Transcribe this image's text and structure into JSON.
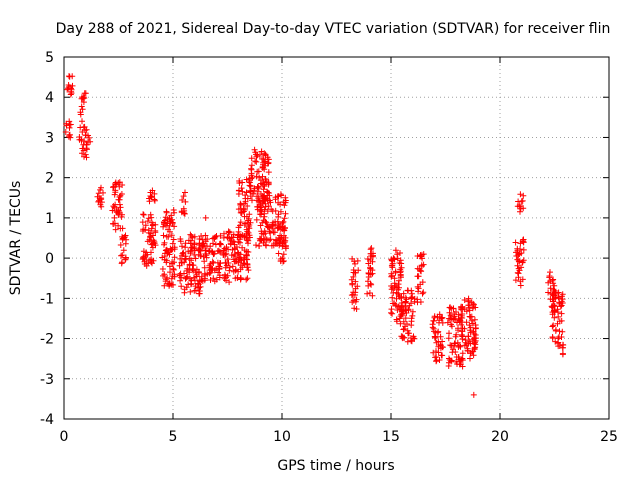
{
  "chart_data": {
    "type": "scatter",
    "title": "Day 288 of 2021, Sidereal Day-to-day VTEC variation (SDTVAR) for receiver flin",
    "xlabel": "GPS time / hours",
    "ylabel": "SDTVAR / TECUs",
    "xlim": [
      0,
      25
    ],
    "ylim": [
      -4,
      5
    ],
    "x_ticks": [
      0,
      5,
      10,
      15,
      20,
      25
    ],
    "y_ticks": [
      -4,
      -3,
      -2,
      -1,
      0,
      1,
      2,
      3,
      4,
      5
    ],
    "grid": true,
    "marker": "+",
    "series": [
      {
        "name": "SDTVAR",
        "color": "#ff0000",
        "clusters": [
          {
            "x": [
              0.05,
              0.35
            ],
            "y": [
              2.9,
              3.4
            ]
          },
          {
            "x": [
              0.1,
              0.4
            ],
            "y": [
              4.0,
              4.6
            ]
          },
          {
            "x": [
              0.7,
              1.2
            ],
            "y": [
              2.5,
              3.3
            ]
          },
          {
            "x": [
              0.75,
              1.0
            ],
            "y": [
              3.4,
              4.1
            ]
          },
          {
            "x": [
              1.5,
              1.8
            ],
            "y": [
              1.2,
              1.8
            ]
          },
          {
            "x": [
              2.2,
              2.7
            ],
            "y": [
              0.7,
              1.9
            ]
          },
          {
            "x": [
              2.6,
              2.9
            ],
            "y": [
              -0.2,
              0.6
            ]
          },
          {
            "x": [
              3.6,
              4.2
            ],
            "y": [
              -0.2,
              1.1
            ]
          },
          {
            "x": [
              3.9,
              4.2
            ],
            "y": [
              1.4,
              1.7
            ]
          },
          {
            "x": [
              4.5,
              5.1
            ],
            "y": [
              -0.7,
              1.2
            ]
          },
          {
            "x": [
              5.3,
              6.3
            ],
            "y": [
              -0.9,
              0.6
            ]
          },
          {
            "x": [
              5.4,
              5.6
            ],
            "y": [
              1.1,
              1.7
            ]
          },
          {
            "x": [
              6.3,
              7.2
            ],
            "y": [
              -0.6,
              0.6
            ]
          },
          {
            "x": [
              7.3,
              8.5
            ],
            "y": [
              -0.6,
              0.7
            ]
          },
          {
            "x": [
              8.0,
              8.6
            ],
            "y": [
              0.5,
              2.0
            ]
          },
          {
            "x": [
              8.5,
              9.4
            ],
            "y": [
              1.4,
              2.7
            ]
          },
          {
            "x": [
              8.8,
              10.2
            ],
            "y": [
              0.3,
              1.6
            ]
          },
          {
            "x": [
              9.8,
              10.2
            ],
            "y": [
              -0.1,
              0.6
            ]
          },
          {
            "x": [
              13.2,
              13.5
            ],
            "y": [
              -1.3,
              0.0
            ]
          },
          {
            "x": [
              13.9,
              14.2
            ],
            "y": [
              -1.0,
              0.3
            ]
          },
          {
            "x": [
              15.0,
              15.5
            ],
            "y": [
              -1.6,
              0.2
            ]
          },
          {
            "x": [
              15.4,
              16.1
            ],
            "y": [
              -2.1,
              -0.8
            ]
          },
          {
            "x": [
              16.2,
              16.5
            ],
            "y": [
              -1.1,
              0.1
            ]
          },
          {
            "x": [
              16.9,
              17.4
            ],
            "y": [
              -2.6,
              -1.4
            ]
          },
          {
            "x": [
              17.6,
              18.3
            ],
            "y": [
              -2.7,
              -1.2
            ]
          },
          {
            "x": [
              18.2,
              18.9
            ],
            "y": [
              -2.5,
              -1.0
            ]
          },
          {
            "x": [
              20.8,
              21.1
            ],
            "y": [
              1.1,
              1.6
            ]
          },
          {
            "x": [
              20.7,
              21.1
            ],
            "y": [
              -0.7,
              0.5
            ]
          },
          {
            "x": [
              22.2,
              22.5
            ],
            "y": [
              -1.4,
              -0.3
            ]
          },
          {
            "x": [
              22.4,
              22.9
            ],
            "y": [
              -2.4,
              -0.8
            ]
          }
        ],
        "extra_points": [
          {
            "x": 6.5,
            "y": 1.0
          },
          {
            "x": 18.7,
            "y": -1.1
          },
          {
            "x": 18.8,
            "y": -3.4
          },
          {
            "x": 16.5,
            "y": 0.1
          },
          {
            "x": 14.1,
            "y": 0.25
          },
          {
            "x": 1.0,
            "y": 4.1
          }
        ]
      }
    ]
  }
}
